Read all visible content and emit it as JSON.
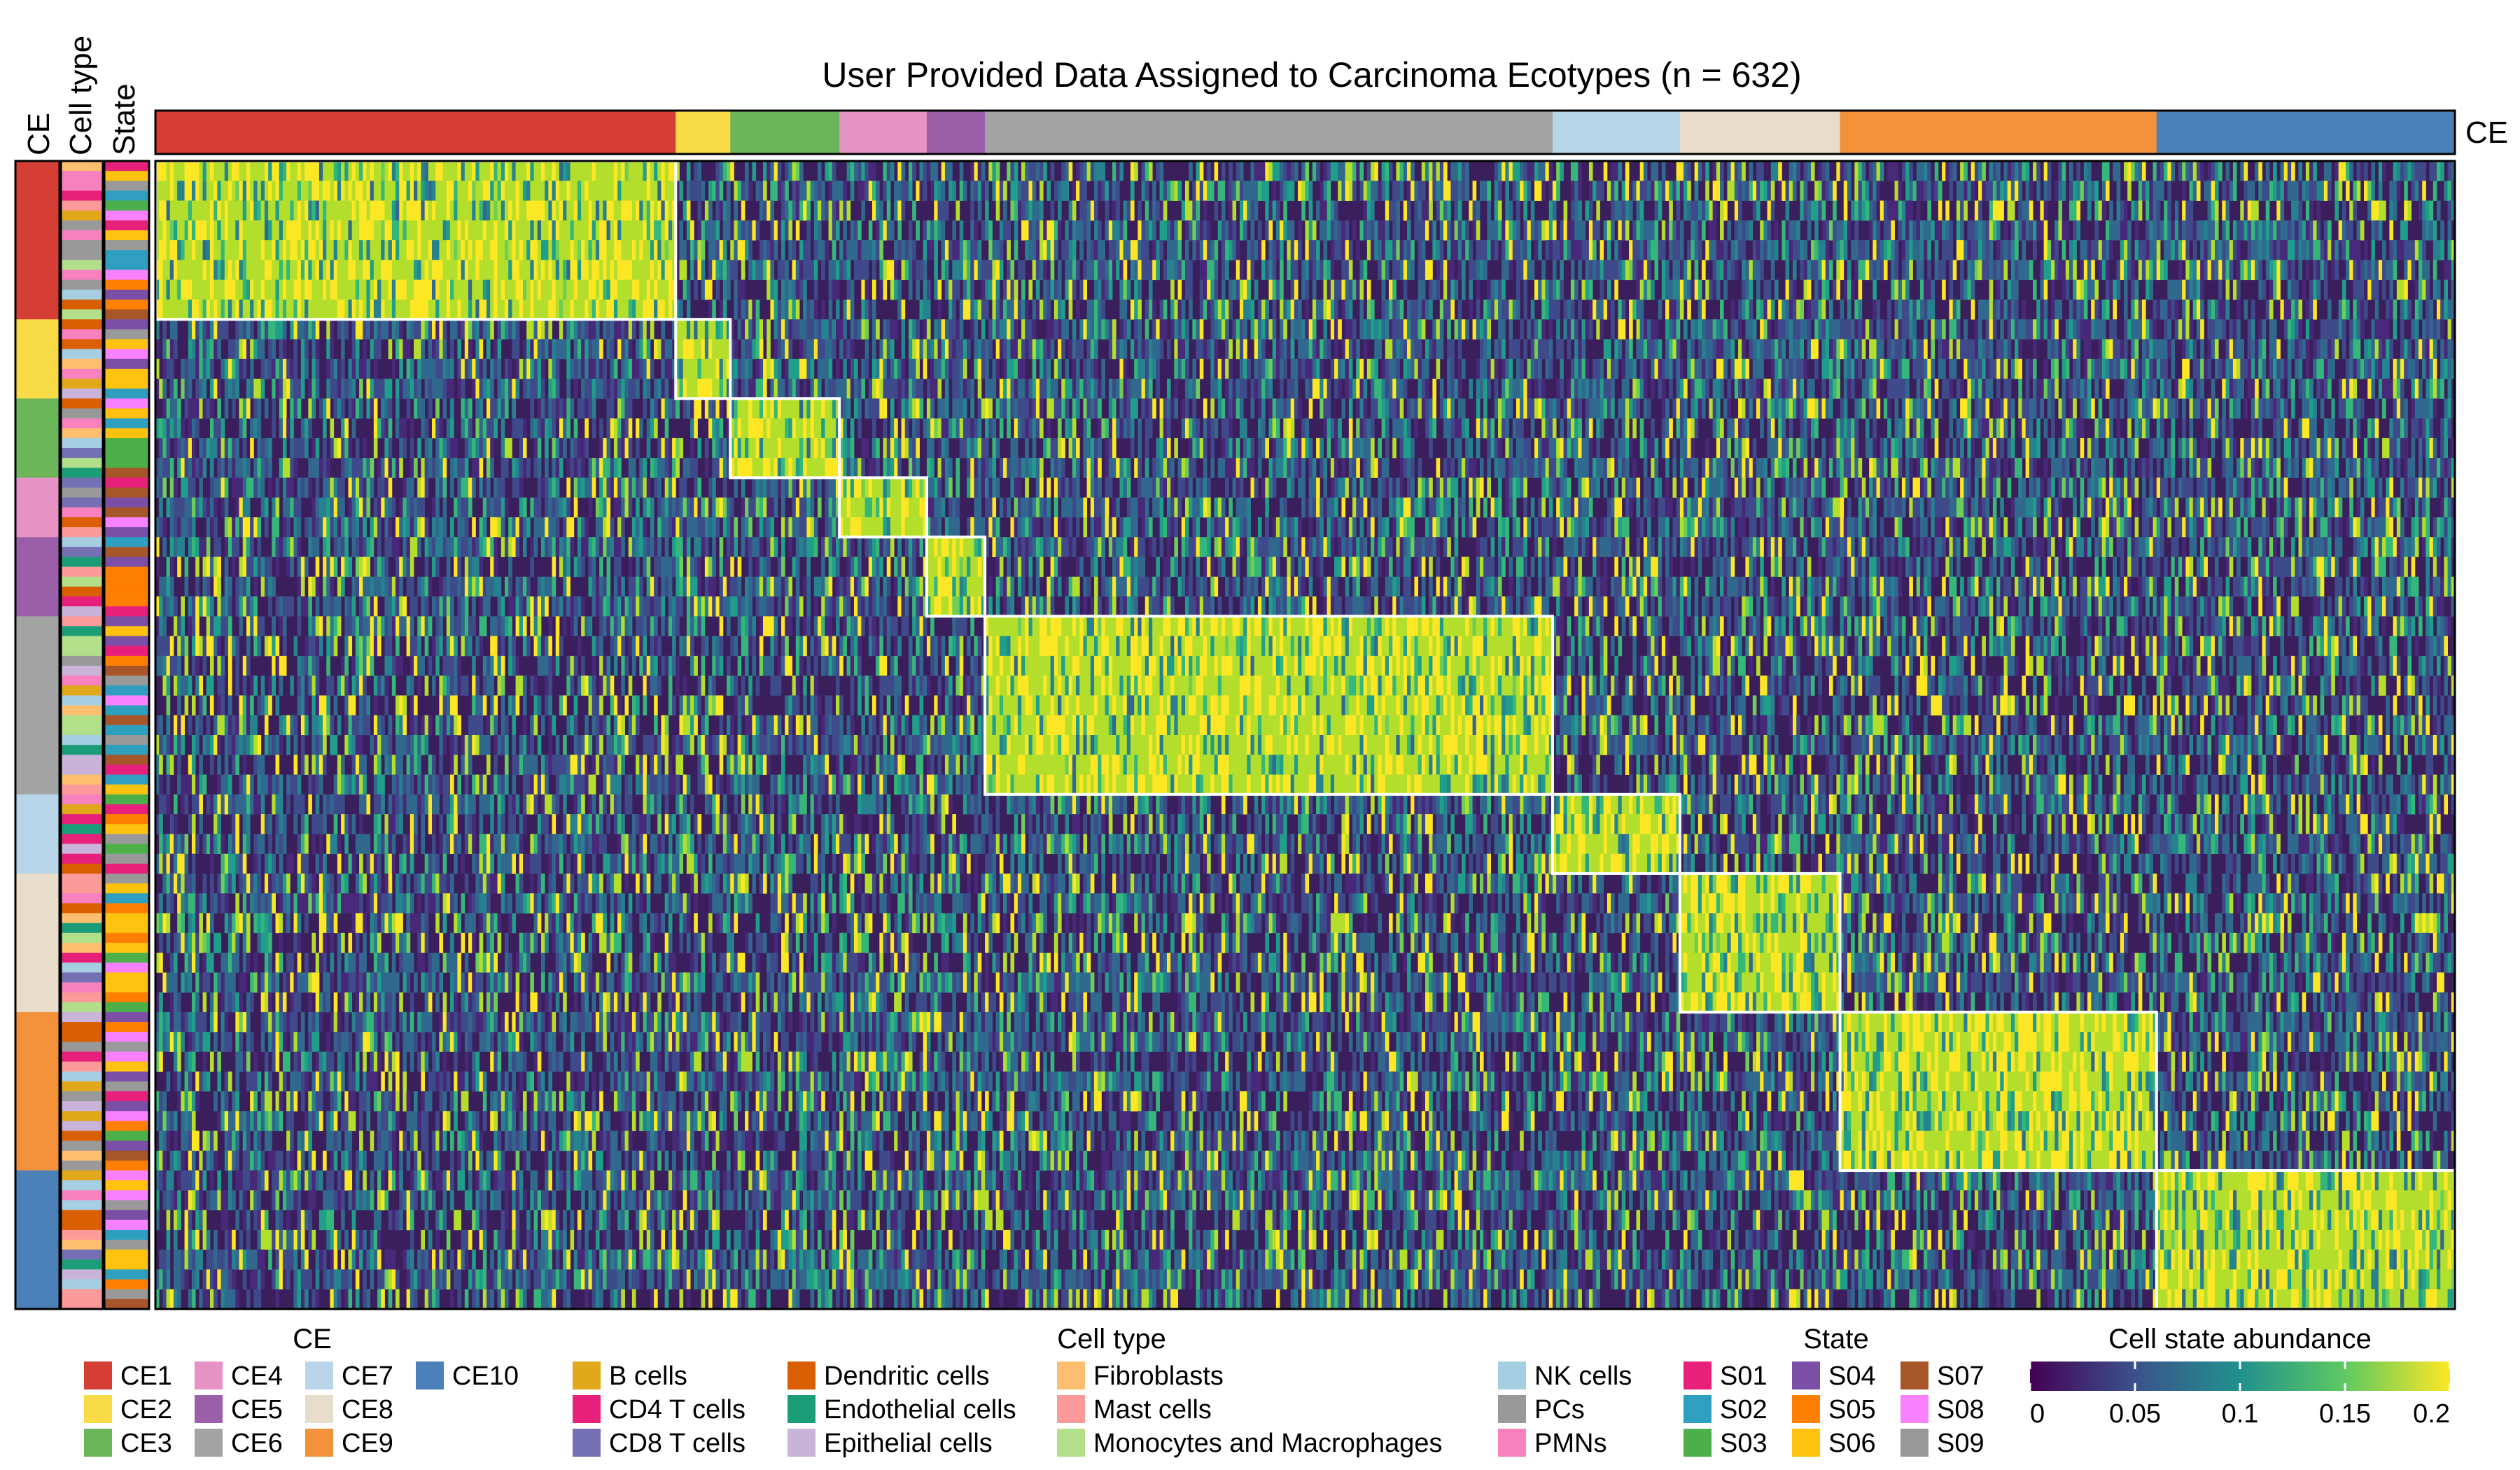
{
  "chart_data": {
    "type": "heatmap",
    "title": "User Provided Data Assigned to Carcinoma Ecotypes (n = 632)",
    "column_annotation_label": "CE",
    "row_annotation_labels": [
      "CE",
      "Cell type",
      "State"
    ],
    "ecotypes": [
      {
        "name": "CE1",
        "color": "#D53E34",
        "samples": 143
      },
      {
        "name": "CE2",
        "color": "#F9DB47",
        "samples": 15
      },
      {
        "name": "CE3",
        "color": "#6CB65A",
        "samples": 30
      },
      {
        "name": "CE4",
        "color": "#E792C4",
        "samples": 24
      },
      {
        "name": "CE5",
        "color": "#9B5FA9",
        "samples": 16
      },
      {
        "name": "CE6",
        "color": "#A3A3A3",
        "samples": 156
      },
      {
        "name": "CE7",
        "color": "#B8D5E9",
        "samples": 35
      },
      {
        "name": "CE8",
        "color": "#E8DCCB",
        "samples": 44
      },
      {
        "name": "CE9",
        "color": "#F3913A",
        "samples": 87
      },
      {
        "name": "CE10",
        "color": "#4B80B9",
        "samples": 82
      }
    ],
    "row_states_per_ecotype": [
      8,
      4,
      4,
      3,
      4,
      9,
      4,
      7,
      8,
      7
    ],
    "cell_types": [
      {
        "name": "B cells",
        "color": "#E0A81A"
      },
      {
        "name": "CD4 T cells",
        "color": "#E7207B"
      },
      {
        "name": "CD8 T cells",
        "color": "#7570B3"
      },
      {
        "name": "Dendritic cells",
        "color": "#D95F02"
      },
      {
        "name": "Endothelial cells",
        "color": "#1B9E77"
      },
      {
        "name": "Epithelial cells",
        "color": "#C9B3D9"
      },
      {
        "name": "Fibroblasts",
        "color": "#FDBF6F"
      },
      {
        "name": "Mast cells",
        "color": "#FB9A99"
      },
      {
        "name": "Monocytes and Macrophages",
        "color": "#B2DF8A"
      },
      {
        "name": "NK cells",
        "color": "#A6CEE3"
      },
      {
        "name": "PCs",
        "color": "#999999"
      },
      {
        "name": "PMNs",
        "color": "#F781BF"
      }
    ],
    "states": [
      {
        "name": "S01",
        "color": "#E7207B"
      },
      {
        "name": "S02",
        "color": "#2E9FBF"
      },
      {
        "name": "S03",
        "color": "#4DAF4A"
      },
      {
        "name": "S04",
        "color": "#7B4FA6"
      },
      {
        "name": "S05",
        "color": "#FF7F00"
      },
      {
        "name": "S06",
        "color": "#FFC20E"
      },
      {
        "name": "S07",
        "color": "#A65628"
      },
      {
        "name": "S08",
        "color": "#F781FF"
      },
      {
        "name": "S09",
        "color": "#999999"
      }
    ],
    "colorbar": {
      "label": "Cell state abundance",
      "range": [
        0,
        0.2
      ],
      "ticks": [
        "0",
        "0.05",
        "0.1",
        "0.15",
        "0.2"
      ],
      "colormap": "viridis"
    },
    "legend_titles": {
      "ce": "CE",
      "cell_type": "Cell type",
      "state": "State"
    }
  }
}
